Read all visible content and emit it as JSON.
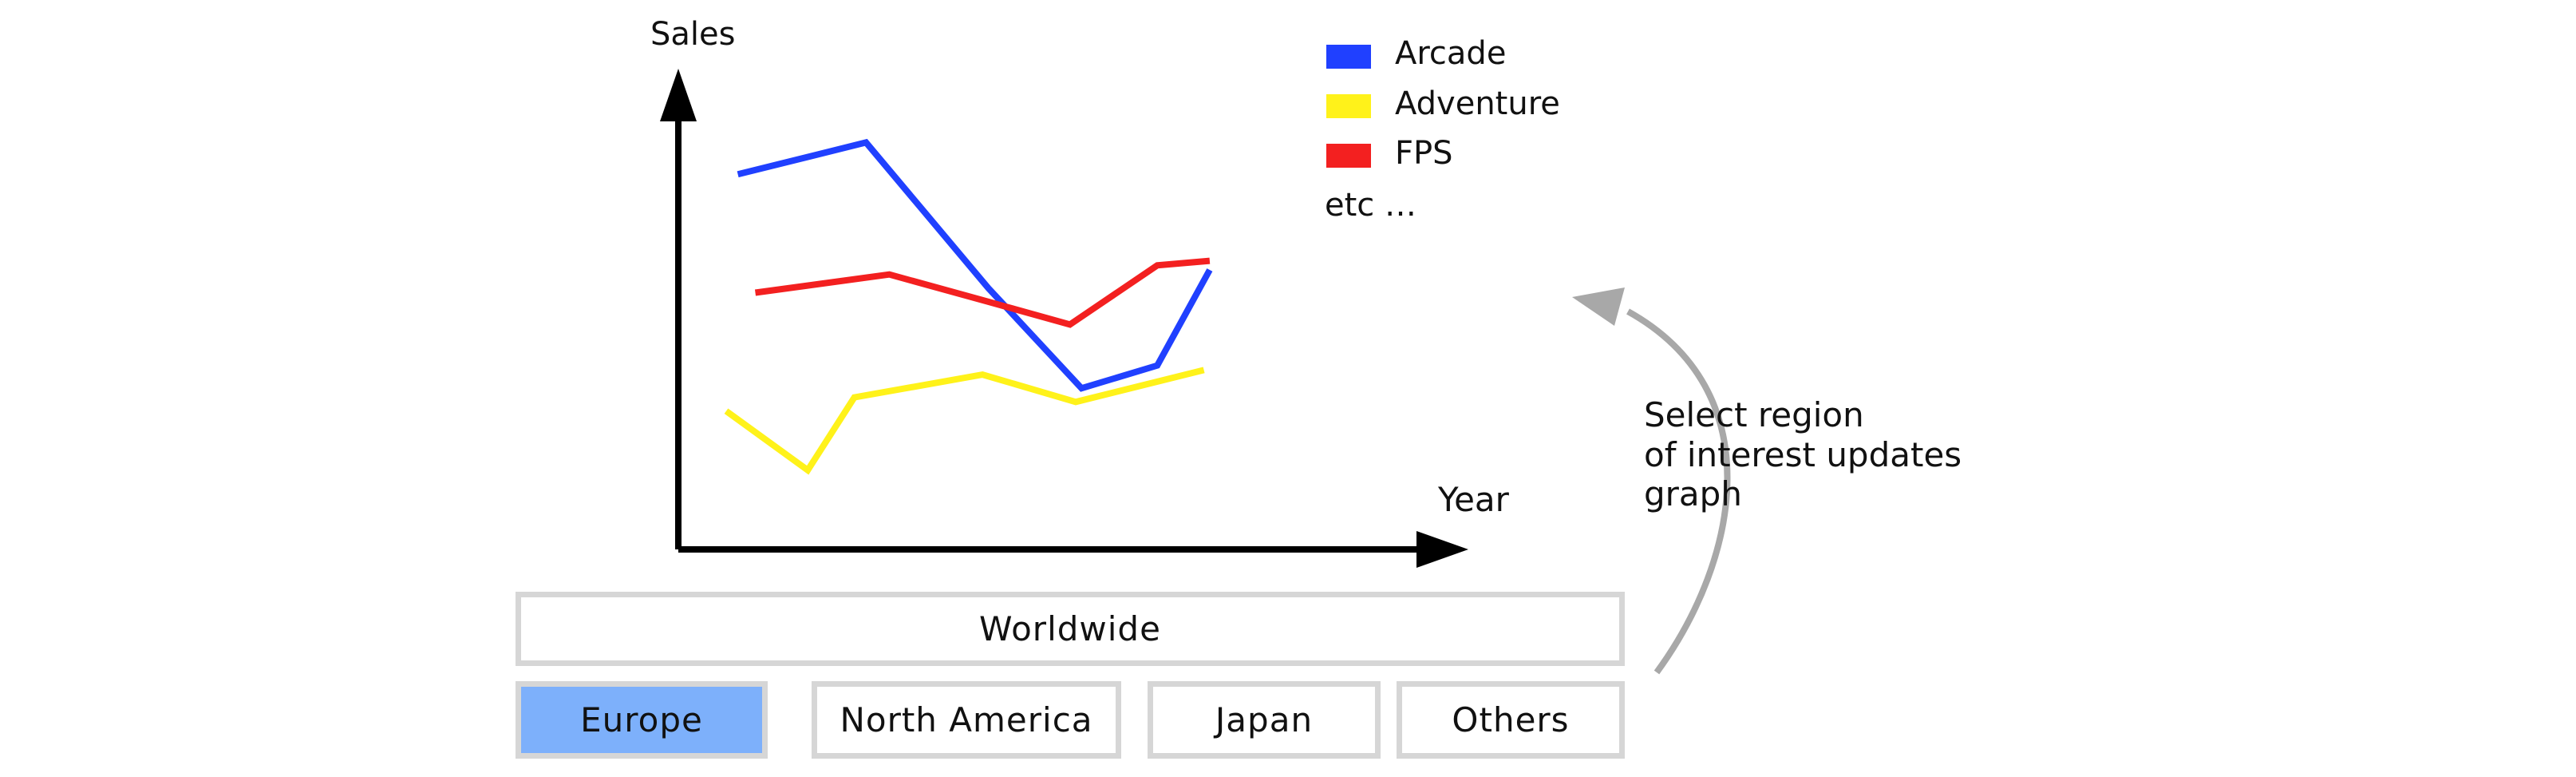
{
  "chart_data": {
    "type": "line",
    "ylabel": "Sales",
    "xlabel": "Year",
    "series": [
      {
        "name": "Arcade",
        "color": "#2040ff",
        "points": [
          [
            0.02,
            0.81
          ],
          [
            0.24,
            0.88
          ],
          [
            0.45,
            0.56
          ],
          [
            0.61,
            0.34
          ],
          [
            0.74,
            0.39
          ],
          [
            0.83,
            0.6
          ]
        ]
      },
      {
        "name": "Adventure",
        "color": "#fff21a",
        "points": [
          [
            0.0,
            0.29
          ],
          [
            0.14,
            0.16
          ],
          [
            0.22,
            0.32
          ],
          [
            0.44,
            0.37
          ],
          [
            0.6,
            0.31
          ],
          [
            0.82,
            0.38
          ]
        ]
      },
      {
        "name": "FPS",
        "color": "#f32020",
        "points": [
          [
            0.05,
            0.55
          ],
          [
            0.28,
            0.59
          ],
          [
            0.45,
            0.53
          ],
          [
            0.59,
            0.48
          ],
          [
            0.74,
            0.61
          ],
          [
            0.83,
            0.62
          ]
        ]
      }
    ],
    "legend_extra": "etc …",
    "legend_position": "top-right"
  },
  "annotation": {
    "lines": [
      "Select region",
      "of interest updates",
      "graph"
    ]
  },
  "regions": {
    "worldwide": "Worldwide",
    "europe": "Europe",
    "north_america": "North America",
    "japan": "Japan",
    "others": "Others",
    "selected": "europe",
    "selected_color": "#7db0fb",
    "border_color": "#d6d6d6"
  }
}
